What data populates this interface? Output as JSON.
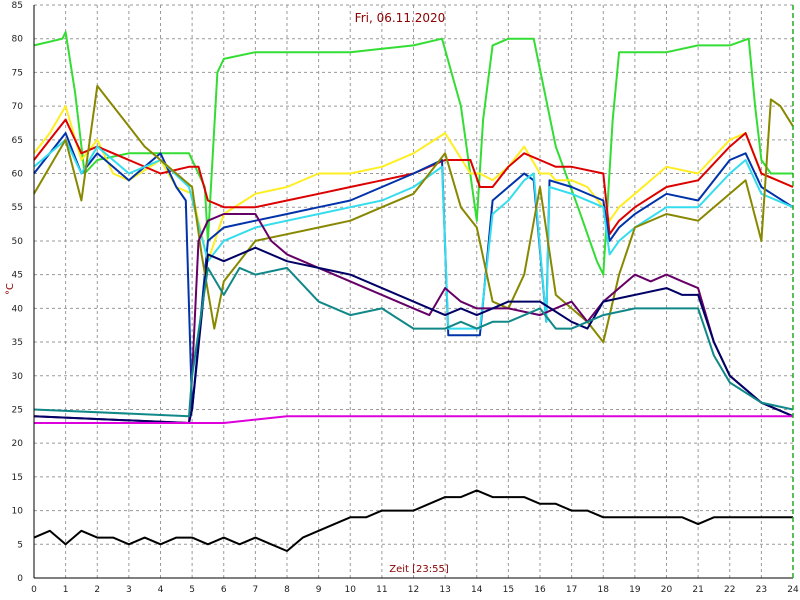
{
  "chart_data": {
    "type": "line",
    "title": "Fri, 06.11.2020",
    "xlabel": "Zeit [23:55]",
    "ylabel": "°C",
    "xlim": [
      0,
      24
    ],
    "ylim": [
      0,
      85
    ],
    "xticks": [
      0,
      1,
      2,
      3,
      4,
      5,
      6,
      7,
      8,
      9,
      10,
      11,
      12,
      13,
      14,
      15,
      16,
      17,
      18,
      19,
      20,
      21,
      22,
      23,
      24
    ],
    "yticks": [
      0,
      5,
      10,
      15,
      20,
      25,
      30,
      35,
      40,
      45,
      50,
      55,
      60,
      65,
      70,
      75,
      80,
      85
    ],
    "grid": true,
    "colors": {
      "background": "#ffffff",
      "grid": "#9a9a9a",
      "axis": "#000000",
      "end_marker": "#22aa22"
    },
    "series": [
      {
        "color": "#33dd33",
        "x": [
          0,
          0.9,
          1.0,
          1.3,
          1.6,
          2,
          3,
          4,
          4.9,
          5.4,
          5.5,
          5.8,
          6,
          7,
          10,
          12,
          12.9,
          13.5,
          14,
          14.2,
          14.5,
          15,
          15.8,
          16.5,
          17.2,
          17.8,
          18,
          18.3,
          18.5,
          19,
          20,
          21,
          21.5,
          22,
          22.6,
          22.8,
          23,
          23.3,
          24
        ],
        "y": [
          79,
          80,
          81,
          72,
          60,
          62,
          63,
          63,
          63,
          58,
          50,
          75,
          77,
          78,
          78,
          79,
          80,
          70,
          53,
          68,
          79,
          80,
          80,
          64,
          55,
          47,
          45,
          68,
          78,
          78,
          78,
          79,
          79,
          79,
          80,
          70,
          62,
          60,
          60
        ]
      },
      {
        "color": "#ffee22",
        "x": [
          0,
          0.5,
          1,
          1.5,
          2,
          2.5,
          3,
          4,
          4.5,
          5,
          5.5,
          6,
          7,
          8,
          9,
          10,
          11,
          12,
          13,
          13.8,
          14.1,
          14.5,
          15,
          15.5,
          16,
          16.3,
          16.5,
          17,
          17.5,
          18,
          18.2,
          18.5,
          19,
          19.5,
          20,
          21,
          22,
          22.5,
          23,
          24
        ],
        "y": [
          63,
          66,
          70,
          62,
          65,
          60,
          59,
          62,
          58,
          57,
          47,
          54,
          57,
          58,
          60,
          60,
          61,
          63,
          66,
          60,
          60,
          59,
          61,
          64,
          60,
          60,
          59,
          59,
          58,
          55,
          53,
          55,
          57,
          59,
          61,
          60,
          65,
          66,
          60,
          58
        ]
      },
      {
        "color": "#dd0000",
        "x": [
          0,
          0.5,
          1,
          1.5,
          2,
          3,
          4,
          4.9,
          5.2,
          5.5,
          6,
          7,
          8,
          9,
          10,
          11,
          12,
          13,
          13.8,
          14.1,
          14.5,
          15,
          15.5,
          16,
          16.5,
          17,
          18,
          18.2,
          18.5,
          19,
          20,
          21,
          22,
          22.5,
          23,
          24
        ],
        "y": [
          62,
          65,
          68,
          63,
          64,
          62,
          60,
          61,
          61,
          56,
          55,
          55,
          56,
          57,
          58,
          59,
          60,
          62,
          62,
          58,
          58,
          61,
          63,
          62,
          61,
          61,
          60,
          51,
          53,
          55,
          58,
          59,
          64,
          66,
          60,
          58
        ]
      },
      {
        "color": "#0033aa",
        "x": [
          0,
          0.5,
          1,
          1.5,
          2,
          3,
          4,
          4.5,
          4.8,
          5,
          5.5,
          6,
          7,
          8,
          9,
          10,
          11,
          12,
          12.9,
          13.1,
          14.1,
          14.5,
          15,
          15.5,
          15.8,
          16.2,
          16.3,
          17,
          18,
          18.2,
          18.5,
          19,
          20,
          21,
          22,
          22.5,
          23,
          24
        ],
        "y": [
          60,
          63,
          66,
          60,
          63,
          59,
          63,
          58,
          56,
          25,
          50,
          52,
          53,
          54,
          55,
          56,
          58,
          60,
          62,
          36,
          36,
          56,
          58,
          60,
          59,
          38,
          59,
          58,
          56,
          50,
          52,
          54,
          57,
          56,
          62,
          63,
          58,
          55
        ]
      },
      {
        "color": "#33ddee",
        "x": [
          0,
          0.5,
          1,
          1.5,
          2,
          3,
          4,
          4.9,
          5.5,
          6,
          7,
          8,
          9,
          10,
          11,
          12,
          12.9,
          13.1,
          14.1,
          14.5,
          15,
          15.5,
          15.8,
          16.2,
          16.3,
          17,
          18,
          18.2,
          18.5,
          19,
          20,
          21,
          22,
          22.5,
          23,
          24
        ],
        "y": [
          61,
          63,
          65,
          60,
          64,
          60,
          62,
          58,
          47,
          50,
          52,
          53,
          54,
          55,
          56,
          58,
          61,
          37,
          37,
          54,
          56,
          59,
          60,
          38,
          58,
          57,
          55,
          48,
          50,
          52,
          55,
          55,
          60,
          62,
          57,
          55
        ]
      },
      {
        "color": "#888800",
        "x": [
          0,
          0.5,
          1,
          1.5,
          2,
          2.5,
          3,
          3.5,
          4,
          4.5,
          5,
          5.3,
          5.7,
          6,
          7,
          8,
          9,
          10,
          11,
          12,
          12.5,
          13,
          13.5,
          14,
          14.5,
          15,
          15.5,
          16,
          16.5,
          17,
          17.5,
          18,
          18.5,
          19,
          20,
          21,
          22,
          22.5,
          23,
          23.3,
          23.6,
          24
        ],
        "y": [
          57,
          61,
          65,
          56,
          73,
          70,
          67,
          64,
          62,
          60,
          58,
          48,
          37,
          44,
          50,
          51,
          52,
          53,
          55,
          57,
          60,
          63,
          55,
          52,
          41,
          40,
          45,
          58,
          42,
          40,
          38,
          35,
          45,
          52,
          54,
          53,
          57,
          59,
          50,
          71,
          70,
          67
        ]
      },
      {
        "color": "#660066",
        "x": [
          0,
          4.9,
          5,
          5.2,
          5.5,
          6,
          7,
          7.5,
          8,
          9,
          10,
          11,
          12,
          12.5,
          13,
          13.5,
          14,
          14.5,
          15,
          16,
          17,
          17.5,
          18,
          19,
          19.5,
          20,
          20.5,
          21,
          21.5,
          22,
          23,
          24
        ],
        "y": [
          24,
          23,
          30,
          50,
          53,
          54,
          54,
          50,
          48,
          46,
          44,
          42,
          40,
          39,
          43,
          41,
          40,
          40,
          40,
          39,
          41,
          38,
          41,
          45,
          44,
          45,
          44,
          43,
          35,
          30,
          26,
          24
        ]
      },
      {
        "color": "#000066",
        "x": [
          0,
          4.9,
          5,
          5.5,
          6,
          7,
          8,
          9,
          10,
          11,
          12,
          13,
          13.5,
          14,
          14.5,
          15,
          16,
          17,
          17.5,
          18,
          19,
          20,
          20.5,
          21,
          21.5,
          22,
          23,
          24
        ],
        "y": [
          24,
          23,
          25,
          48,
          47,
          49,
          47,
          46,
          45,
          43,
          41,
          39,
          40,
          39,
          40,
          41,
          41,
          38,
          37,
          41,
          42,
          43,
          42,
          42,
          35,
          30,
          26,
          24
        ]
      },
      {
        "color": "#118888",
        "x": [
          0,
          4.9,
          5,
          5.5,
          6,
          6.5,
          7,
          8,
          9,
          10,
          11,
          12,
          13,
          13.5,
          14,
          14.5,
          15,
          16,
          16.5,
          17,
          18,
          19,
          20,
          21,
          21.5,
          22,
          23,
          24
        ],
        "y": [
          25,
          24,
          30,
          46,
          42,
          46,
          45,
          46,
          41,
          39,
          40,
          37,
          37,
          38,
          37,
          38,
          38,
          40,
          37,
          37,
          39,
          40,
          40,
          40,
          33,
          29,
          26,
          25
        ]
      },
      {
        "color": "#dd00dd",
        "x": [
          0,
          2,
          4,
          6,
          8,
          10,
          12,
          14,
          16,
          18,
          20,
          22,
          24
        ],
        "y": [
          23,
          23,
          23,
          23,
          24,
          24,
          24,
          24,
          24,
          24,
          24,
          24,
          24
        ]
      },
      {
        "color": "#000000",
        "x": [
          0,
          0.5,
          1,
          1.5,
          2,
          2.5,
          3,
          3.5,
          4,
          4.5,
          5,
          5.5,
          6,
          6.5,
          7,
          7.5,
          8,
          8.5,
          9,
          9.5,
          10,
          10.5,
          11,
          11.5,
          12,
          12.5,
          13,
          13.5,
          14,
          14.5,
          15,
          15.5,
          16,
          16.5,
          17,
          17.5,
          18,
          18.5,
          19,
          19.5,
          20,
          20.5,
          21,
          21.5,
          22,
          22.5,
          23,
          23.5,
          24
        ],
        "y": [
          6,
          7,
          5,
          7,
          6,
          6,
          5,
          6,
          5,
          6,
          6,
          5,
          6,
          5,
          6,
          5,
          4,
          6,
          7,
          8,
          9,
          9,
          10,
          10,
          10,
          11,
          12,
          12,
          13,
          12,
          12,
          12,
          11,
          11,
          10,
          10,
          9,
          9,
          9,
          9,
          9,
          9,
          8,
          9,
          9,
          9,
          9,
          9,
          9
        ]
      }
    ]
  }
}
